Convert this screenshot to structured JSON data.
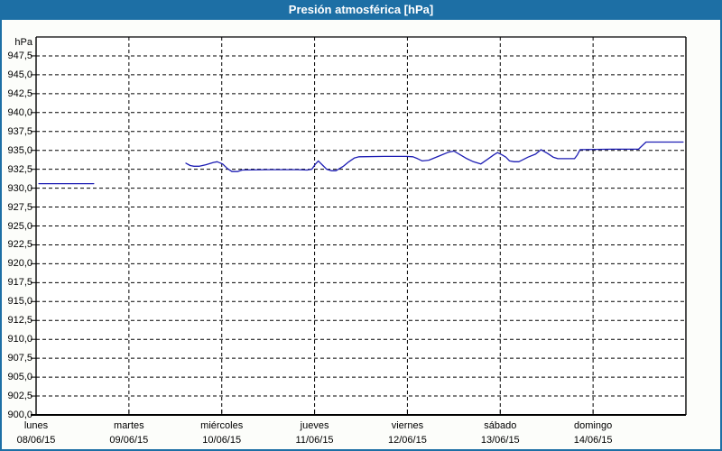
{
  "window": {
    "title": "Presión atmosférica [hPa]"
  },
  "colors": {
    "frame": "#1d6fa5",
    "titlebar": "#1d6fa5",
    "title_text": "#ffffff",
    "window_bg": "#fcfdfa",
    "plot_bg": "#ffffff",
    "grid": "#000000",
    "axis": "#000000",
    "text": "#000000",
    "line": "#1e1eb4"
  },
  "chart_data": {
    "type": "line",
    "title": "Presión atmosférica [hPa]",
    "grid": "dashed",
    "legend": "none",
    "ylim": [
      900,
      950
    ],
    "y_axis": {
      "unit": "hPa",
      "tick_step": 2.5,
      "ticks": [
        {
          "label": "947,5",
          "value": 947.5
        },
        {
          "label": "945,0",
          "value": 945.0
        },
        {
          "label": "942,5",
          "value": 942.5
        },
        {
          "label": "940,0",
          "value": 940.0
        },
        {
          "label": "937,5",
          "value": 937.5
        },
        {
          "label": "935,0",
          "value": 935.0
        },
        {
          "label": "932,5",
          "value": 932.5
        },
        {
          "label": "930,0",
          "value": 930.0
        },
        {
          "label": "927,5",
          "value": 927.5
        },
        {
          "label": "925,0",
          "value": 925.0
        },
        {
          "label": "922,5",
          "value": 922.5
        },
        {
          "label": "920,0",
          "value": 920.0
        },
        {
          "label": "917,5",
          "value": 917.5
        },
        {
          "label": "915,0",
          "value": 915.0
        },
        {
          "label": "912,5",
          "value": 912.5
        },
        {
          "label": "910,0",
          "value": 910.0
        },
        {
          "label": "907,5",
          "value": 907.5
        },
        {
          "label": "905,0",
          "value": 905.0
        },
        {
          "label": "902,5",
          "value": 902.5
        },
        {
          "label": "900,0",
          "value": 900.0
        }
      ]
    },
    "x_axis": {
      "days": [
        {
          "name": "lunes",
          "date": "08/06/15"
        },
        {
          "name": "martes",
          "date": "09/06/15"
        },
        {
          "name": "miércoles",
          "date": "10/06/15"
        },
        {
          "name": "jueves",
          "date": "11/06/15"
        },
        {
          "name": "viernes",
          "date": "12/06/15"
        },
        {
          "name": "sábado",
          "date": "13/06/15"
        },
        {
          "name": "domingo",
          "date": "14/06/15"
        }
      ]
    },
    "series": [
      {
        "name": "Presión atmosférica",
        "unit": "hPa",
        "color": "#1e1eb4",
        "segments": [
          {
            "points": [
              [
                0.03,
                930.6
              ],
              [
                0.62,
                930.6
              ]
            ]
          },
          {
            "points": [
              [
                1.614,
                933.3
              ],
              [
                1.66,
                933.0
              ],
              [
                1.7,
                932.9
              ],
              [
                1.76,
                932.9
              ],
              [
                1.83,
                933.1
              ],
              [
                1.91,
                933.4
              ],
              [
                1.95,
                933.5
              ],
              [
                2.01,
                933.2
              ],
              [
                2.06,
                932.6
              ],
              [
                2.11,
                932.2
              ],
              [
                2.17,
                932.2
              ],
              [
                2.22,
                932.4
              ],
              [
                2.5,
                932.45
              ],
              [
                2.82,
                932.45
              ],
              [
                2.92,
                932.4
              ],
              [
                2.97,
                932.5
              ],
              [
                3.01,
                933.2
              ],
              [
                3.04,
                933.6
              ],
              [
                3.09,
                933.0
              ],
              [
                3.13,
                932.5
              ],
              [
                3.18,
                932.3
              ],
              [
                3.23,
                932.3
              ],
              [
                3.31,
                932.9
              ],
              [
                3.37,
                933.5
              ],
              [
                3.43,
                934.0
              ],
              [
                3.48,
                934.15
              ],
              [
                3.75,
                934.2
              ],
              [
                3.99,
                934.2
              ],
              [
                4.06,
                934.15
              ],
              [
                4.11,
                933.9
              ],
              [
                4.16,
                933.6
              ],
              [
                4.23,
                933.7
              ],
              [
                4.35,
                934.3
              ],
              [
                4.44,
                934.75
              ],
              [
                4.5,
                934.9
              ],
              [
                4.57,
                934.4
              ],
              [
                4.64,
                933.9
              ],
              [
                4.71,
                933.5
              ],
              [
                4.79,
                933.2
              ],
              [
                4.86,
                933.8
              ],
              [
                4.93,
                934.4
              ],
              [
                4.97,
                934.7
              ],
              [
                5.02,
                934.4
              ],
              [
                5.06,
                934.1
              ],
              [
                5.1,
                933.6
              ],
              [
                5.15,
                933.5
              ],
              [
                5.2,
                933.5
              ],
              [
                5.3,
                934.1
              ],
              [
                5.38,
                934.5
              ],
              [
                5.44,
                935.1
              ],
              [
                5.51,
                934.6
              ],
              [
                5.57,
                934.1
              ],
              [
                5.62,
                933.9
              ],
              [
                5.8,
                933.9
              ],
              [
                5.83,
                934.4
              ],
              [
                5.86,
                935.1
              ],
              [
                6.2,
                935.15
              ],
              [
                6.49,
                935.15
              ],
              [
                6.57,
                936.1
              ],
              [
                6.97,
                936.1
              ]
            ]
          }
        ]
      }
    ]
  }
}
